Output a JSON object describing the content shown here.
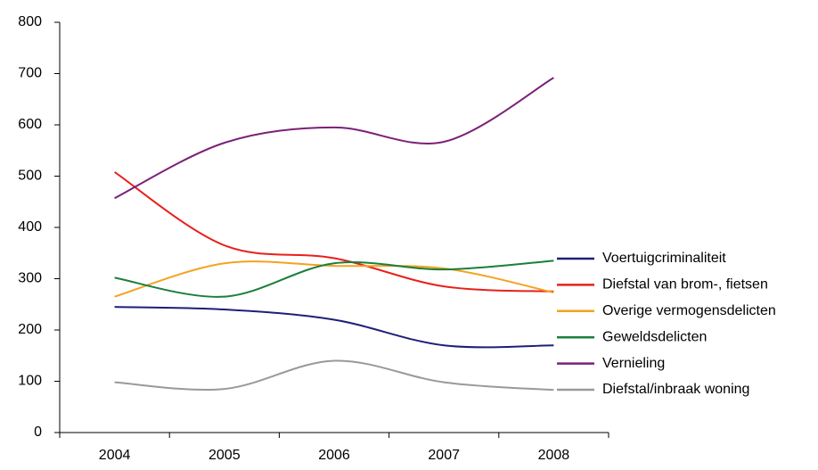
{
  "chart_data": {
    "type": "line",
    "categories": [
      "2004",
      "2005",
      "2006",
      "2007",
      "2008"
    ],
    "series": [
      {
        "name": "Voertuigcriminaliteit",
        "color": "#1f1f78",
        "values": [
          245,
          240,
          220,
          170,
          170
        ]
      },
      {
        "name": "Diefstal van brom-, fietsen",
        "color": "#e8201c",
        "values": [
          508,
          365,
          340,
          285,
          275
        ]
      },
      {
        "name": "Overige vermogensdelicten",
        "color": "#f5a21f",
        "values": [
          265,
          330,
          325,
          320,
          273
        ]
      },
      {
        "name": "Geweldsdelicten",
        "color": "#1a7f3c",
        "values": [
          302,
          265,
          330,
          318,
          335
        ]
      },
      {
        "name": "Vernieling",
        "color": "#7b2077",
        "values": [
          457,
          565,
          595,
          567,
          692
        ]
      },
      {
        "name": "Diefstal/inbraak woning",
        "color": "#999999",
        "values": [
          98,
          85,
          140,
          98,
          83
        ]
      }
    ],
    "ylim": [
      0,
      800
    ],
    "yticks": [
      0,
      100,
      200,
      300,
      400,
      500,
      600,
      700,
      800
    ],
    "legend": "right"
  }
}
